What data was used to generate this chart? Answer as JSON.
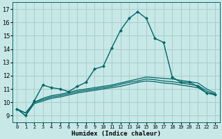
{
  "x": [
    0,
    1,
    2,
    3,
    4,
    5,
    6,
    7,
    8,
    9,
    10,
    11,
    12,
    13,
    14,
    15,
    16,
    17,
    18,
    19,
    20,
    21,
    22,
    23
  ],
  "line_main": [
    9.5,
    9.0,
    10.1,
    11.3,
    11.1,
    11.0,
    10.8,
    11.2,
    11.5,
    12.5,
    12.7,
    14.1,
    15.4,
    16.3,
    16.8,
    16.3,
    14.8,
    14.5,
    11.9,
    11.5,
    11.5,
    11.2,
    10.7,
    10.6
  ],
  "line_upper": [
    9.5,
    9.2,
    10.0,
    10.3,
    10.5,
    10.6,
    10.75,
    10.9,
    11.0,
    11.1,
    11.2,
    11.3,
    11.45,
    11.6,
    11.75,
    11.9,
    11.85,
    11.8,
    11.75,
    11.65,
    11.55,
    11.45,
    11.0,
    10.7
  ],
  "line_mid": [
    9.5,
    9.2,
    10.0,
    10.2,
    10.4,
    10.5,
    10.65,
    10.8,
    10.9,
    11.0,
    11.1,
    11.2,
    11.35,
    11.5,
    11.6,
    11.75,
    11.7,
    11.6,
    11.55,
    11.45,
    11.35,
    11.25,
    10.85,
    10.6
  ],
  "line_lower": [
    9.5,
    9.0,
    9.9,
    10.1,
    10.3,
    10.4,
    10.55,
    10.7,
    10.8,
    10.9,
    11.0,
    11.1,
    11.2,
    11.35,
    11.5,
    11.6,
    11.55,
    11.45,
    11.4,
    11.3,
    11.2,
    11.1,
    10.7,
    10.55
  ],
  "bg_color": "#c8e8e8",
  "grid_color": "#a8cccc",
  "line_color": "#006666",
  "xlabel": "Humidex (Indice chaleur)",
  "xlim": [
    -0.5,
    23.5
  ],
  "ylim": [
    8.5,
    17.5
  ],
  "yticks": [
    9,
    10,
    11,
    12,
    13,
    14,
    15,
    16,
    17
  ],
  "xtick_labels": [
    "0",
    "1",
    "2",
    "3",
    "4",
    "5",
    "6",
    "7",
    "8",
    "9",
    "10",
    "11",
    "12",
    "13",
    "14",
    "15",
    "16",
    "17",
    "18",
    "19",
    "20",
    "21",
    "22",
    "23"
  ]
}
